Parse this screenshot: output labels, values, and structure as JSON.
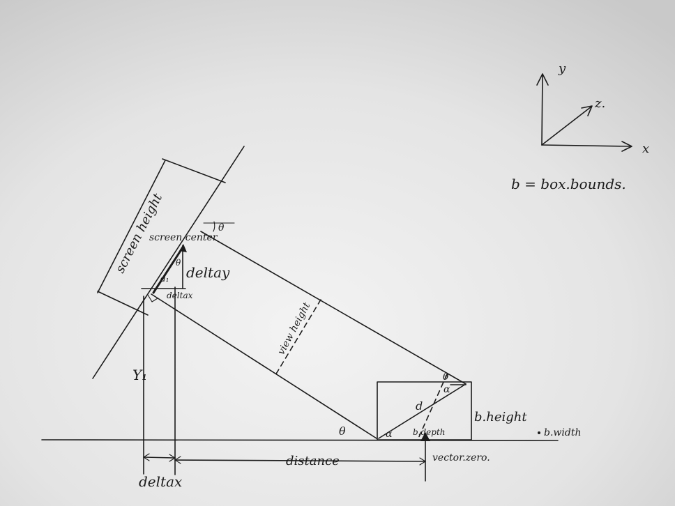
{
  "labels": {
    "axis_y": "y",
    "axis_z": "z.",
    "axis_x": "x",
    "bounds_def": "b = box.bounds.",
    "screen_height": "screen height",
    "screen_center": "screen center",
    "theta": "θ",
    "deltay": "deltay",
    "d1": "d₁",
    "deltax_small": "deltax",
    "view_height": "view height",
    "y1": "Y₁",
    "d": "d",
    "alpha": "α",
    "b_height": "b.height",
    "b_width": "b.width",
    "b_depth": "b.depth",
    "vector_zero": "vector.zero.",
    "distance": "distance",
    "deltax": "deltax"
  },
  "colors": {
    "paper": "#d9d9d9",
    "ink": "#1b1b1b"
  }
}
